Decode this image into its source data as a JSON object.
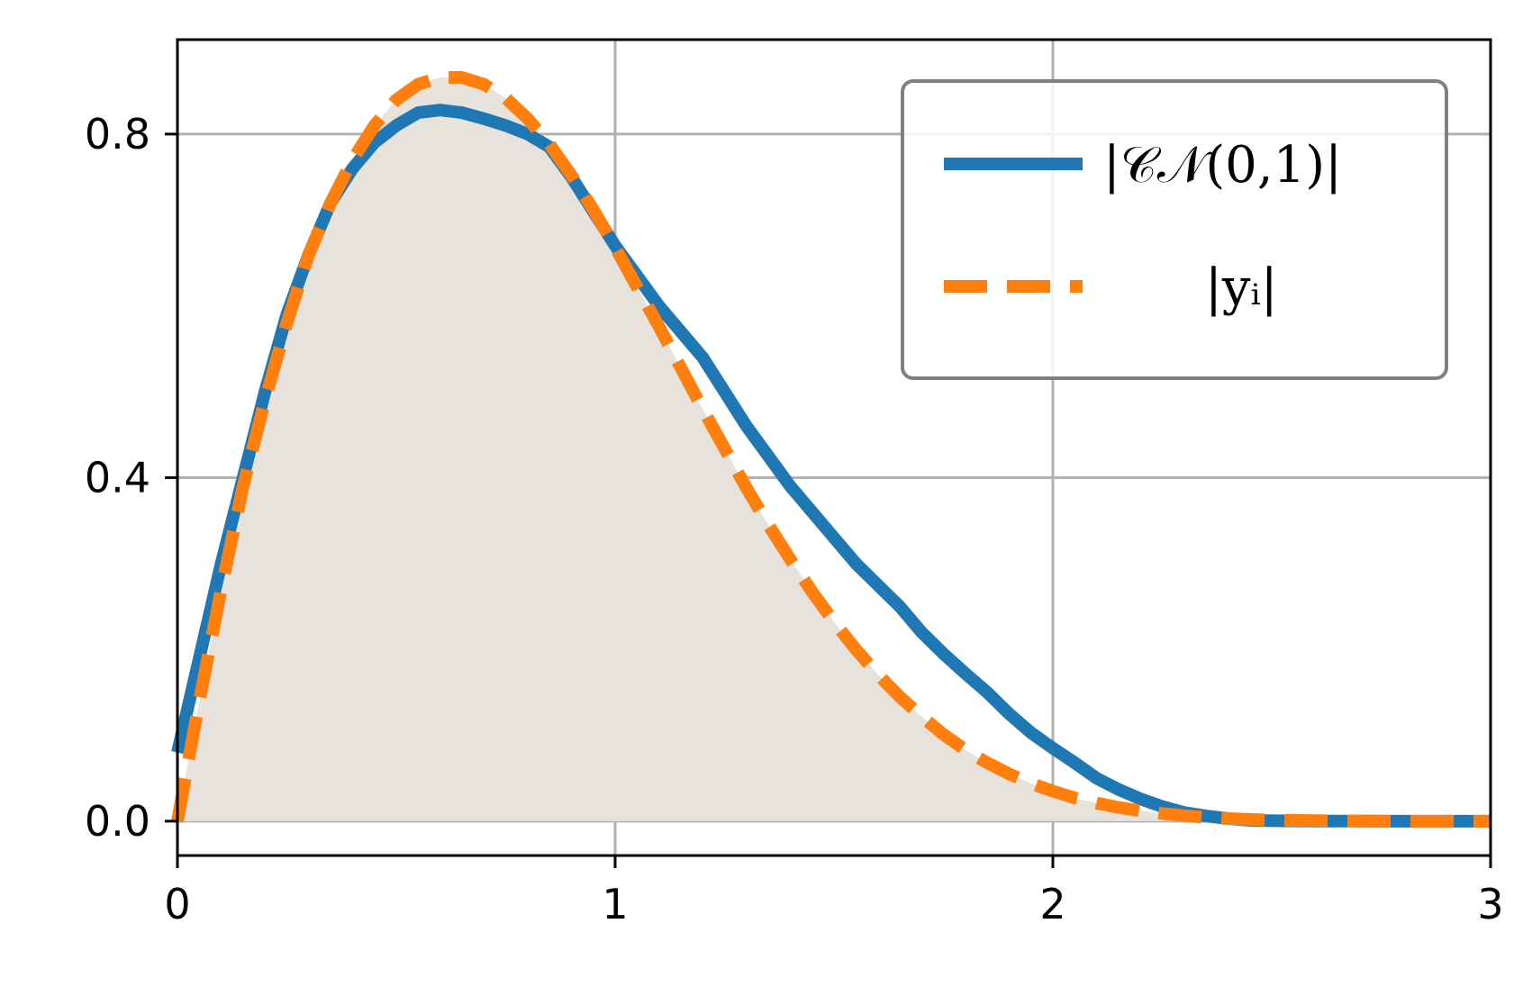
{
  "chart_data": {
    "type": "line",
    "title": "",
    "xlabel": "",
    "ylabel": "",
    "xlim": [
      0,
      3
    ],
    "ylim": [
      -0.04,
      0.91
    ],
    "grid": true,
    "legend_position": "top-right",
    "xticks": [
      {
        "value": 0,
        "label": "0"
      },
      {
        "value": 1,
        "label": "1"
      },
      {
        "value": 2,
        "label": "2"
      },
      {
        "value": 3,
        "label": "3"
      }
    ],
    "yticks": [
      {
        "value": 0.0,
        "label": "0.0"
      },
      {
        "value": 0.4,
        "label": "0.4"
      },
      {
        "value": 0.8,
        "label": "0.8"
      }
    ],
    "fill": {
      "under_series": 1,
      "color": "#e8e2dc"
    },
    "series": [
      {
        "name": "|𝒞𝒩(0,1)|",
        "color": "#1f77b4",
        "style": "solid",
        "x": [
          0.0,
          0.05,
          0.1,
          0.15,
          0.2,
          0.25,
          0.3,
          0.35,
          0.4,
          0.45,
          0.5,
          0.55,
          0.6,
          0.65,
          0.7,
          0.75,
          0.8,
          0.85,
          0.9,
          0.95,
          1.0,
          1.05,
          1.1,
          1.15,
          1.2,
          1.25,
          1.3,
          1.35,
          1.4,
          1.45,
          1.5,
          1.55,
          1.6,
          1.65,
          1.7,
          1.75,
          1.8,
          1.85,
          1.9,
          1.95,
          2.0,
          2.05,
          2.1,
          2.15,
          2.2,
          2.25,
          2.3,
          2.35,
          2.4,
          2.45,
          2.5,
          2.6,
          2.7,
          2.8,
          2.9,
          3.0
        ],
        "y": [
          0.08,
          0.19,
          0.3,
          0.4,
          0.5,
          0.59,
          0.66,
          0.72,
          0.76,
          0.79,
          0.81,
          0.825,
          0.828,
          0.825,
          0.818,
          0.81,
          0.8,
          0.785,
          0.75,
          0.71,
          0.67,
          0.635,
          0.6,
          0.57,
          0.54,
          0.5,
          0.46,
          0.425,
          0.39,
          0.36,
          0.33,
          0.3,
          0.275,
          0.25,
          0.22,
          0.195,
          0.172,
          0.15,
          0.125,
          0.103,
          0.085,
          0.068,
          0.05,
          0.037,
          0.026,
          0.017,
          0.01,
          0.006,
          0.003,
          0.001,
          0.0005,
          0.0002,
          0.0001,
          0.0,
          0.0,
          0.0
        ]
      },
      {
        "name": "|yᵢ|",
        "color": "#ff7f0e",
        "style": "dashed",
        "x": [
          0.0,
          0.05,
          0.1,
          0.15,
          0.2,
          0.25,
          0.3,
          0.35,
          0.4,
          0.45,
          0.5,
          0.55,
          0.6,
          0.65,
          0.7,
          0.75,
          0.8,
          0.85,
          0.9,
          0.95,
          1.0,
          1.05,
          1.1,
          1.15,
          1.2,
          1.25,
          1.3,
          1.35,
          1.4,
          1.45,
          1.5,
          1.55,
          1.6,
          1.65,
          1.7,
          1.75,
          1.8,
          1.85,
          1.9,
          1.95,
          2.0,
          2.05,
          2.1,
          2.15,
          2.2,
          2.25,
          2.3,
          2.35,
          2.4,
          2.45,
          2.5,
          2.6,
          2.7,
          2.8,
          2.9,
          3.0
        ],
        "y": [
          0.0,
          0.14,
          0.27,
          0.39,
          0.49,
          0.58,
          0.66,
          0.72,
          0.77,
          0.81,
          0.84,
          0.858,
          0.866,
          0.866,
          0.858,
          0.842,
          0.818,
          0.788,
          0.752,
          0.712,
          0.668,
          0.622,
          0.576,
          0.528,
          0.48,
          0.434,
          0.388,
          0.345,
          0.305,
          0.267,
          0.232,
          0.2,
          0.171,
          0.145,
          0.122,
          0.101,
          0.083,
          0.068,
          0.055,
          0.044,
          0.035,
          0.027,
          0.021,
          0.016,
          0.012,
          0.009,
          0.0065,
          0.0045,
          0.003,
          0.002,
          0.0013,
          0.0006,
          0.0003,
          0.0001,
          0.0,
          0.0
        ]
      }
    ]
  }
}
